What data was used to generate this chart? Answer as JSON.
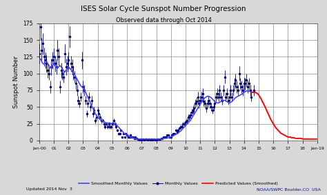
{
  "title": "ISES Solar Cycle Sunspot Number Progression",
  "subtitle": "Observed data through Oct 2014",
  "ylabel": "Sunspot Number",
  "footer_left": "Updated 2014 Nov  3",
  "footer_right": "NOAA/SWPC Boulder,CO  USA",
  "bg_color": "#d8d8d8",
  "plot_bg_color": "#ffffff",
  "grid_color": "#888888",
  "title_color": "#000000",
  "footer_right_color": "#0000cd",
  "xlim_years": [
    2000,
    2019
  ],
  "ylim": [
    0,
    175
  ],
  "yticks": [
    0,
    25,
    50,
    75,
    100,
    125,
    150,
    175
  ],
  "xtick_labels": [
    "Jan-00",
    "01",
    "02",
    "03",
    "04",
    "05",
    "06",
    "07",
    "08",
    "09",
    "10",
    "11",
    "12",
    "13",
    "14",
    "15",
    "16",
    "17",
    "18",
    "Jan-19"
  ],
  "smoothed_color": "#4444ff",
  "monthly_color": "#000080",
  "predicted_color": "#ff0000",
  "smoothed_x": [
    2000.0,
    2000.08,
    2000.17,
    2000.25,
    2000.33,
    2000.42,
    2000.5,
    2000.58,
    2000.67,
    2000.75,
    2000.83,
    2000.92,
    2001.0,
    2001.08,
    2001.17,
    2001.25,
    2001.33,
    2001.42,
    2001.5,
    2001.58,
    2001.67,
    2001.75,
    2001.83,
    2001.92,
    2002.0,
    2002.08,
    2002.17,
    2002.25,
    2002.33,
    2002.42,
    2002.5,
    2002.58,
    2002.67,
    2002.75,
    2002.83,
    2002.92,
    2003.0,
    2003.08,
    2003.17,
    2003.25,
    2003.33,
    2003.42,
    2003.5,
    2003.58,
    2003.67,
    2003.75,
    2003.83,
    2003.92,
    2004.0,
    2004.08,
    2004.17,
    2004.25,
    2004.33,
    2004.42,
    2004.5,
    2004.58,
    2004.67,
    2004.75,
    2004.83,
    2004.92,
    2005.0,
    2005.08,
    2005.17,
    2005.25,
    2005.33,
    2005.42,
    2005.5,
    2005.58,
    2005.67,
    2005.75,
    2005.83,
    2005.92,
    2006.0,
    2006.08,
    2006.17,
    2006.25,
    2006.33,
    2006.42,
    2006.5,
    2006.58,
    2006.67,
    2006.75,
    2006.83,
    2006.92,
    2007.0,
    2007.08,
    2007.17,
    2007.25,
    2007.33,
    2007.42,
    2007.5,
    2007.58,
    2007.67,
    2007.75,
    2007.83,
    2007.92,
    2008.0,
    2008.08,
    2008.17,
    2008.25,
    2008.33,
    2008.42,
    2008.5,
    2008.58,
    2008.67,
    2008.75,
    2008.83,
    2008.92,
    2009.0,
    2009.08,
    2009.17,
    2009.25,
    2009.33,
    2009.42,
    2009.5,
    2009.58,
    2009.67,
    2009.75,
    2009.83,
    2009.92,
    2010.0,
    2010.08,
    2010.17,
    2010.25,
    2010.33,
    2010.42,
    2010.5,
    2010.58,
    2010.67,
    2010.75,
    2010.83,
    2010.92,
    2011.0,
    2011.08,
    2011.17,
    2011.25,
    2011.33,
    2011.42,
    2011.5,
    2011.58,
    2011.67,
    2011.75,
    2011.83,
    2011.92,
    2012.0,
    2012.08,
    2012.17,
    2012.25,
    2012.33,
    2012.42,
    2012.5,
    2012.58,
    2012.67,
    2012.75,
    2012.83,
    2012.92,
    2013.0,
    2013.08,
    2013.17,
    2013.25,
    2013.33,
    2013.42,
    2013.5,
    2013.58,
    2013.67,
    2013.75,
    2013.83,
    2013.92,
    2014.0,
    2014.08,
    2014.17,
    2014.25,
    2014.33,
    2014.42,
    2014.5,
    2014.67
  ],
  "smoothed_y": [
    120,
    122,
    118,
    115,
    114,
    116,
    118,
    115,
    112,
    108,
    110,
    113,
    115,
    112,
    110,
    108,
    110,
    112,
    110,
    107,
    104,
    102,
    105,
    108,
    110,
    108,
    106,
    103,
    100,
    98,
    95,
    92,
    88,
    85,
    82,
    80,
    78,
    75,
    72,
    68,
    64,
    60,
    56,
    52,
    48,
    44,
    40,
    37,
    35,
    33,
    31,
    30,
    29,
    28,
    27,
    26,
    26,
    26,
    26,
    25,
    26,
    26,
    25,
    24,
    22,
    20,
    18,
    16,
    14,
    12,
    10,
    9,
    8,
    7,
    6,
    5,
    4,
    4,
    3,
    3,
    2,
    2,
    2,
    2,
    2,
    2,
    2,
    2,
    2,
    2,
    2,
    2,
    2,
    2,
    2,
    2,
    2,
    2,
    2,
    2,
    2,
    2,
    3,
    3,
    3,
    4,
    4,
    5,
    5,
    6,
    7,
    8,
    9,
    10,
    11,
    13,
    14,
    16,
    18,
    20,
    22,
    24,
    26,
    28,
    30,
    33,
    36,
    39,
    42,
    45,
    48,
    51,
    54,
    57,
    60,
    62,
    64,
    65,
    66,
    66,
    65,
    64,
    62,
    60,
    58,
    57,
    56,
    56,
    57,
    58,
    59,
    60,
    60,
    59,
    58,
    57,
    56,
    57,
    58,
    60,
    62,
    64,
    65,
    66,
    67,
    68,
    69,
    70,
    72,
    73,
    74,
    74,
    74,
    73,
    72,
    72
  ],
  "monthly_x": [
    2000.0,
    2000.08,
    2000.17,
    2000.25,
    2000.33,
    2000.42,
    2000.5,
    2000.58,
    2000.67,
    2000.75,
    2000.83,
    2000.92,
    2001.0,
    2001.08,
    2001.17,
    2001.25,
    2001.33,
    2001.42,
    2001.5,
    2001.58,
    2001.67,
    2001.75,
    2001.83,
    2001.92,
    2002.0,
    2002.08,
    2002.17,
    2002.25,
    2002.33,
    2002.42,
    2002.5,
    2002.58,
    2002.67,
    2002.75,
    2002.83,
    2002.92,
    2003.0,
    2003.08,
    2003.17,
    2003.25,
    2003.33,
    2003.42,
    2003.5,
    2003.58,
    2003.67,
    2003.75,
    2003.83,
    2003.92,
    2004.0,
    2004.08,
    2004.17,
    2004.25,
    2004.33,
    2004.42,
    2004.5,
    2004.58,
    2004.67,
    2004.75,
    2004.83,
    2004.92,
    2005.0,
    2005.08,
    2005.17,
    2005.25,
    2005.33,
    2005.42,
    2005.5,
    2005.58,
    2005.67,
    2005.75,
    2005.83,
    2005.92,
    2006.0,
    2006.08,
    2006.17,
    2006.25,
    2006.33,
    2006.42,
    2006.5,
    2006.58,
    2006.67,
    2006.75,
    2006.83,
    2006.92,
    2007.0,
    2007.08,
    2007.17,
    2007.25,
    2007.33,
    2007.42,
    2007.5,
    2007.58,
    2007.67,
    2007.75,
    2007.83,
    2007.92,
    2008.0,
    2008.08,
    2008.17,
    2008.25,
    2008.33,
    2008.42,
    2008.5,
    2008.58,
    2008.67,
    2008.75,
    2008.83,
    2008.92,
    2009.0,
    2009.08,
    2009.17,
    2009.25,
    2009.33,
    2009.42,
    2009.5,
    2009.58,
    2009.67,
    2009.75,
    2009.83,
    2009.92,
    2010.0,
    2010.08,
    2010.17,
    2010.25,
    2010.33,
    2010.42,
    2010.5,
    2010.58,
    2010.67,
    2010.75,
    2010.83,
    2010.92,
    2011.0,
    2011.08,
    2011.17,
    2011.25,
    2011.33,
    2011.42,
    2011.5,
    2011.58,
    2011.67,
    2011.75,
    2011.83,
    2011.92,
    2012.0,
    2012.08,
    2012.17,
    2012.25,
    2012.33,
    2012.42,
    2012.5,
    2012.58,
    2012.67,
    2012.75,
    2012.83,
    2012.92,
    2013.0,
    2013.08,
    2013.17,
    2013.25,
    2013.33,
    2013.42,
    2013.5,
    2013.58,
    2013.67,
    2013.75,
    2013.83,
    2013.92,
    2014.0,
    2014.08,
    2014.17,
    2014.25,
    2014.33,
    2014.42,
    2014.5,
    2014.67
  ],
  "monthly_y": [
    130,
    170,
    135,
    145,
    125,
    120,
    115,
    105,
    100,
    80,
    110,
    120,
    125,
    115,
    110,
    135,
    125,
    80,
    105,
    100,
    95,
    130,
    110,
    115,
    120,
    155,
    115,
    110,
    100,
    95,
    85,
    75,
    60,
    55,
    65,
    120,
    80,
    75,
    60,
    40,
    55,
    65,
    50,
    60,
    40,
    45,
    30,
    35,
    45,
    40,
    35,
    30,
    30,
    25,
    20,
    25,
    20,
    25,
    20,
    20,
    25,
    30,
    25,
    20,
    15,
    10,
    10,
    15,
    5,
    10,
    5,
    10,
    8,
    5,
    5,
    8,
    5,
    5,
    3,
    5,
    3,
    2,
    1,
    2,
    1,
    2,
    1,
    2,
    2,
    1,
    2,
    1,
    2,
    1,
    2,
    1,
    1,
    2,
    2,
    2,
    3,
    3,
    5,
    5,
    5,
    8,
    8,
    5,
    5,
    8,
    10,
    10,
    15,
    12,
    15,
    18,
    20,
    20,
    25,
    25,
    28,
    30,
    35,
    35,
    38,
    42,
    45,
    48,
    55,
    58,
    65,
    55,
    60,
    65,
    70,
    58,
    55,
    48,
    55,
    60,
    55,
    50,
    45,
    50,
    55,
    65,
    70,
    65,
    75,
    65,
    60,
    75,
    95,
    65,
    70,
    60,
    65,
    75,
    65,
    75,
    85,
    90,
    80,
    75,
    100,
    85,
    80,
    75,
    85,
    85,
    90,
    80,
    85,
    75,
    65,
    75
  ],
  "monthly_err": [
    15,
    20,
    18,
    16,
    14,
    12,
    13,
    11,
    10,
    9,
    12,
    13,
    13,
    12,
    11,
    15,
    13,
    9,
    11,
    10,
    9,
    14,
    12,
    12,
    13,
    16,
    12,
    11,
    10,
    9,
    9,
    8,
    7,
    6,
    7,
    13,
    9,
    8,
    7,
    5,
    6,
    7,
    6,
    7,
    5,
    5,
    4,
    4,
    5,
    4,
    4,
    4,
    3,
    3,
    3,
    3,
    3,
    3,
    3,
    3,
    3,
    3,
    3,
    3,
    2,
    2,
    2,
    2,
    1,
    1,
    1,
    1,
    1,
    1,
    1,
    1,
    1,
    1,
    1,
    1,
    1,
    1,
    1,
    1,
    1,
    1,
    1,
    1,
    1,
    1,
    1,
    1,
    1,
    1,
    1,
    1,
    1,
    1,
    1,
    1,
    1,
    1,
    1,
    1,
    1,
    1,
    1,
    1,
    1,
    1,
    1,
    1,
    2,
    2,
    2,
    2,
    3,
    3,
    3,
    3,
    3,
    4,
    4,
    4,
    5,
    5,
    6,
    6,
    7,
    7,
    8,
    7,
    7,
    8,
    8,
    7,
    6,
    6,
    6,
    7,
    7,
    6,
    5,
    6,
    6,
    7,
    8,
    7,
    8,
    7,
    7,
    8,
    10,
    7,
    8,
    7,
    7,
    8,
    7,
    8,
    9,
    10,
    9,
    8,
    11,
    9,
    9,
    8,
    9,
    9,
    10,
    9,
    9,
    8,
    7,
    8
  ],
  "predicted_x": [
    2014.5,
    2014.67,
    2014.75,
    2014.83,
    2014.92,
    2015.0,
    2015.08,
    2015.17,
    2015.25,
    2015.33,
    2015.42,
    2015.5,
    2015.58,
    2015.67,
    2015.75,
    2015.83,
    2015.92,
    2016.0,
    2016.08,
    2016.17,
    2016.25,
    2016.33,
    2016.42,
    2016.5,
    2016.58,
    2016.67,
    2016.75,
    2016.83,
    2016.92,
    2017.0,
    2017.08,
    2017.17,
    2017.25,
    2017.33,
    2017.42,
    2017.5,
    2017.58,
    2017.67,
    2017.75,
    2017.83,
    2017.92,
    2018.0,
    2018.08,
    2018.17,
    2018.25,
    2018.33,
    2018.42,
    2018.5,
    2018.58,
    2018.67,
    2018.75,
    2018.83,
    2018.92,
    2019.0
  ],
  "predicted_y": [
    72,
    72,
    72,
    71,
    70,
    68,
    65,
    62,
    58,
    55,
    51,
    47,
    43,
    39,
    35,
    31,
    28,
    25,
    22,
    19,
    17,
    15,
    13,
    11,
    10,
    9,
    8,
    7,
    6,
    5,
    5,
    5,
    4,
    4,
    4,
    3,
    3,
    3,
    3,
    3,
    3,
    2,
    2,
    2,
    2,
    2,
    2,
    2,
    2,
    2,
    2,
    2,
    2,
    2
  ]
}
